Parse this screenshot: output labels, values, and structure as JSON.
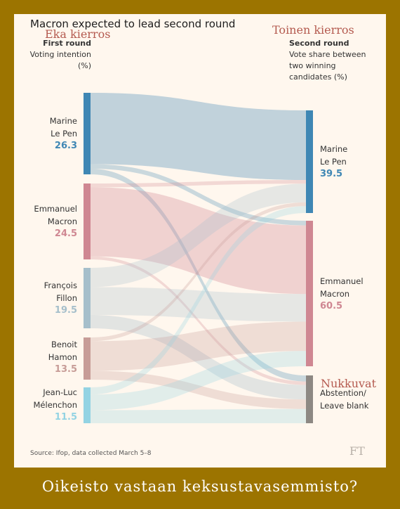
{
  "title": "Macron expected to lead second round",
  "overlay": {
    "first_round_fi": "Eka kierros",
    "second_round_fi": "Toinen kierros",
    "abstention_fi": "Nukkuvat"
  },
  "caption": "Oikeisto vastaan keksustavasemmisto?",
  "source": "Source: Ifop, data collected March 5–8",
  "logo": "FT",
  "chart_data": {
    "type": "sankey",
    "title": "Macron expected to lead second round",
    "left_header": {
      "title": "First round",
      "subtitle": "Voting intention (%)"
    },
    "right_header": {
      "title": "Second round",
      "subtitle": "Vote share between two winning candidates (%)"
    },
    "left_nodes": [
      {
        "line1": "Marine",
        "line2": "Le Pen",
        "value": "26.3",
        "color": "#3f87b4"
      },
      {
        "line1": "Emmanuel",
        "line2": "Macron",
        "value": "24.5",
        "color": "#cf8792"
      },
      {
        "line1": "François",
        "line2": "Fillon",
        "value": "19.5",
        "color": "#a6bfcb"
      },
      {
        "line1": "Benoit",
        "line2": "Hamon",
        "value": "13.5",
        "color": "#c79c97"
      },
      {
        "line1": "Jean-Luc",
        "line2": "Mélenchon",
        "value": "11.5",
        "color": "#93d3e3"
      }
    ],
    "right_nodes": [
      {
        "line1": "Marine",
        "line2": "Le Pen",
        "value": "39.5",
        "color": "#3f87b4"
      },
      {
        "line1": "Emmanuel",
        "line2": "Macron",
        "value": "60.5",
        "color": "#cf8792"
      },
      {
        "line1": "Abstention/",
        "line2": "Leave blank",
        "value": "",
        "color": "#8d8883"
      }
    ],
    "flows": [
      {
        "from": 0,
        "to": 0,
        "value": 23.0
      },
      {
        "from": 0,
        "to": 1,
        "value": 1.5
      },
      {
        "from": 0,
        "to": 2,
        "value": 1.8
      },
      {
        "from": 1,
        "to": 0,
        "value": 1.2
      },
      {
        "from": 1,
        "to": 1,
        "value": 22.3
      },
      {
        "from": 1,
        "to": 2,
        "value": 1.0
      },
      {
        "from": 2,
        "to": 0,
        "value": 6.2
      },
      {
        "from": 2,
        "to": 1,
        "value": 9.0
      },
      {
        "from": 2,
        "to": 2,
        "value": 4.3
      },
      {
        "from": 3,
        "to": 0,
        "value": 1.2
      },
      {
        "from": 3,
        "to": 1,
        "value": 9.5
      },
      {
        "from": 3,
        "to": 2,
        "value": 2.8
      },
      {
        "from": 4,
        "to": 0,
        "value": 2.3
      },
      {
        "from": 4,
        "to": 1,
        "value": 5.0
      },
      {
        "from": 4,
        "to": 2,
        "value": 4.2
      }
    ]
  }
}
